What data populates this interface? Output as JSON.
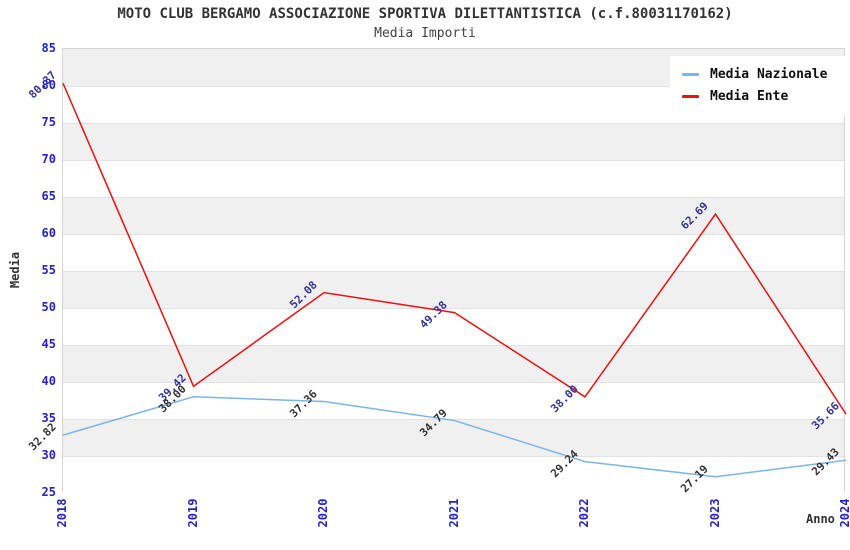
{
  "header": {
    "title": "MOTO CLUB BERGAMO ASSOCIAZIONE SPORTIVA DILETTANTISTICA (c.f.80031170162)",
    "subtitle": "Media Importi"
  },
  "legend": {
    "items": [
      {
        "label": "Media Nazionale",
        "color": "#7cb5ec"
      },
      {
        "label": "Media Ente",
        "color": "#ee1111"
      }
    ]
  },
  "colors": {
    "tick_label": "#2323cc",
    "band_gray": "#f0f0f0",
    "band_white": "#ffffff",
    "gridline": "#e2e2e2",
    "title_text": "#333333"
  },
  "chart_data": {
    "type": "line",
    "title": "MOTO CLUB BERGAMO ASSOCIAZIONE SPORTIVA DILETTANTISTICA (c.f.80031170162)",
    "subtitle": "Media Importi",
    "xlabel": "Anno",
    "ylabel": "Media",
    "categories": [
      "2018",
      "2019",
      "2020",
      "2021",
      "2022",
      "2023",
      "2024"
    ],
    "series": [
      {
        "name": "Media Nazionale",
        "color": "#7cb5ec",
        "label_color": "#333333",
        "values": [
          32.82,
          38.0,
          37.36,
          34.79,
          29.24,
          27.19,
          29.43
        ]
      },
      {
        "name": "Media Ente",
        "color": "#ee1111",
        "label_color": "#333399",
        "values": [
          80.37,
          39.42,
          52.08,
          49.38,
          38.0,
          62.69,
          35.66
        ]
      }
    ],
    "ylim": [
      25,
      85
    ],
    "ytick_step": 5,
    "grid": "horizontal-alternating-bands",
    "legend_position": "top-right",
    "x_tick_rotation": -90,
    "point_label_rotation": -45,
    "point_label_format": "2-decimals"
  }
}
